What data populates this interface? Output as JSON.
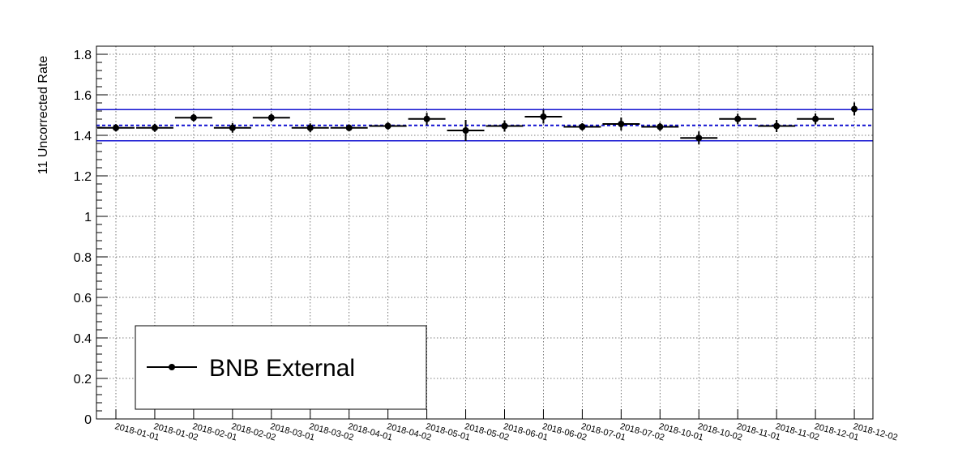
{
  "chart_data": {
    "type": "scatter",
    "title": "",
    "xlabel": "",
    "ylabel": "11  Uncorrected Rate",
    "ylim": [
      0,
      1.84
    ],
    "yticks": [
      0,
      0.2,
      0.4,
      0.6,
      0.8,
      1,
      1.2,
      1.4,
      1.6,
      1.8
    ],
    "grid": true,
    "categories": [
      "2018-01-01",
      "2018-01-02",
      "2018-02-01",
      "2018-02-02",
      "2018-03-01",
      "2018-03-02",
      "2018-04-01",
      "2018-04-02",
      "2018-05-01",
      "2018-05-02",
      "2018-06-01",
      "2018-06-02",
      "2018-07-01",
      "2018-07-02",
      "2018-10-01",
      "2018-10-02",
      "2018-11-01",
      "2018-11-02",
      "2018-12-01",
      "2018-12-02"
    ],
    "series": [
      {
        "name": "BNB External",
        "color": "#000000",
        "values": [
          1.437,
          1.437,
          1.487,
          1.437,
          1.487,
          1.437,
          1.437,
          1.446,
          1.481,
          1.424,
          1.446,
          1.492,
          1.442,
          1.456,
          1.442,
          1.387,
          1.481,
          1.446,
          1.481,
          1.53
        ],
        "yerr": [
          0.006,
          0.008,
          0.007,
          0.012,
          0.008,
          0.01,
          0.004,
          0.006,
          0.018,
          0.04,
          0.016,
          0.022,
          0.006,
          0.02,
          0.008,
          0.02,
          0.014,
          0.018,
          0.015,
          0.02
        ],
        "xerr": [
          0.5,
          0.5,
          0.5,
          0.5,
          0.5,
          0.5,
          0.5,
          0.5,
          0.5,
          0.5,
          0.5,
          0.5,
          0.5,
          0.5,
          0.5,
          0.5,
          0.5,
          0.5,
          0.5,
          0.0
        ]
      }
    ],
    "reference_lines": [
      {
        "y": 1.527,
        "style": "solid",
        "color": "#1010d0"
      },
      {
        "y": 1.449,
        "style": "dashed",
        "color": "#1010d0"
      },
      {
        "y": 1.373,
        "style": "solid",
        "color": "#1010d0"
      }
    ],
    "legend": {
      "position": "bottom-left",
      "entries": [
        "BNB External"
      ]
    }
  }
}
